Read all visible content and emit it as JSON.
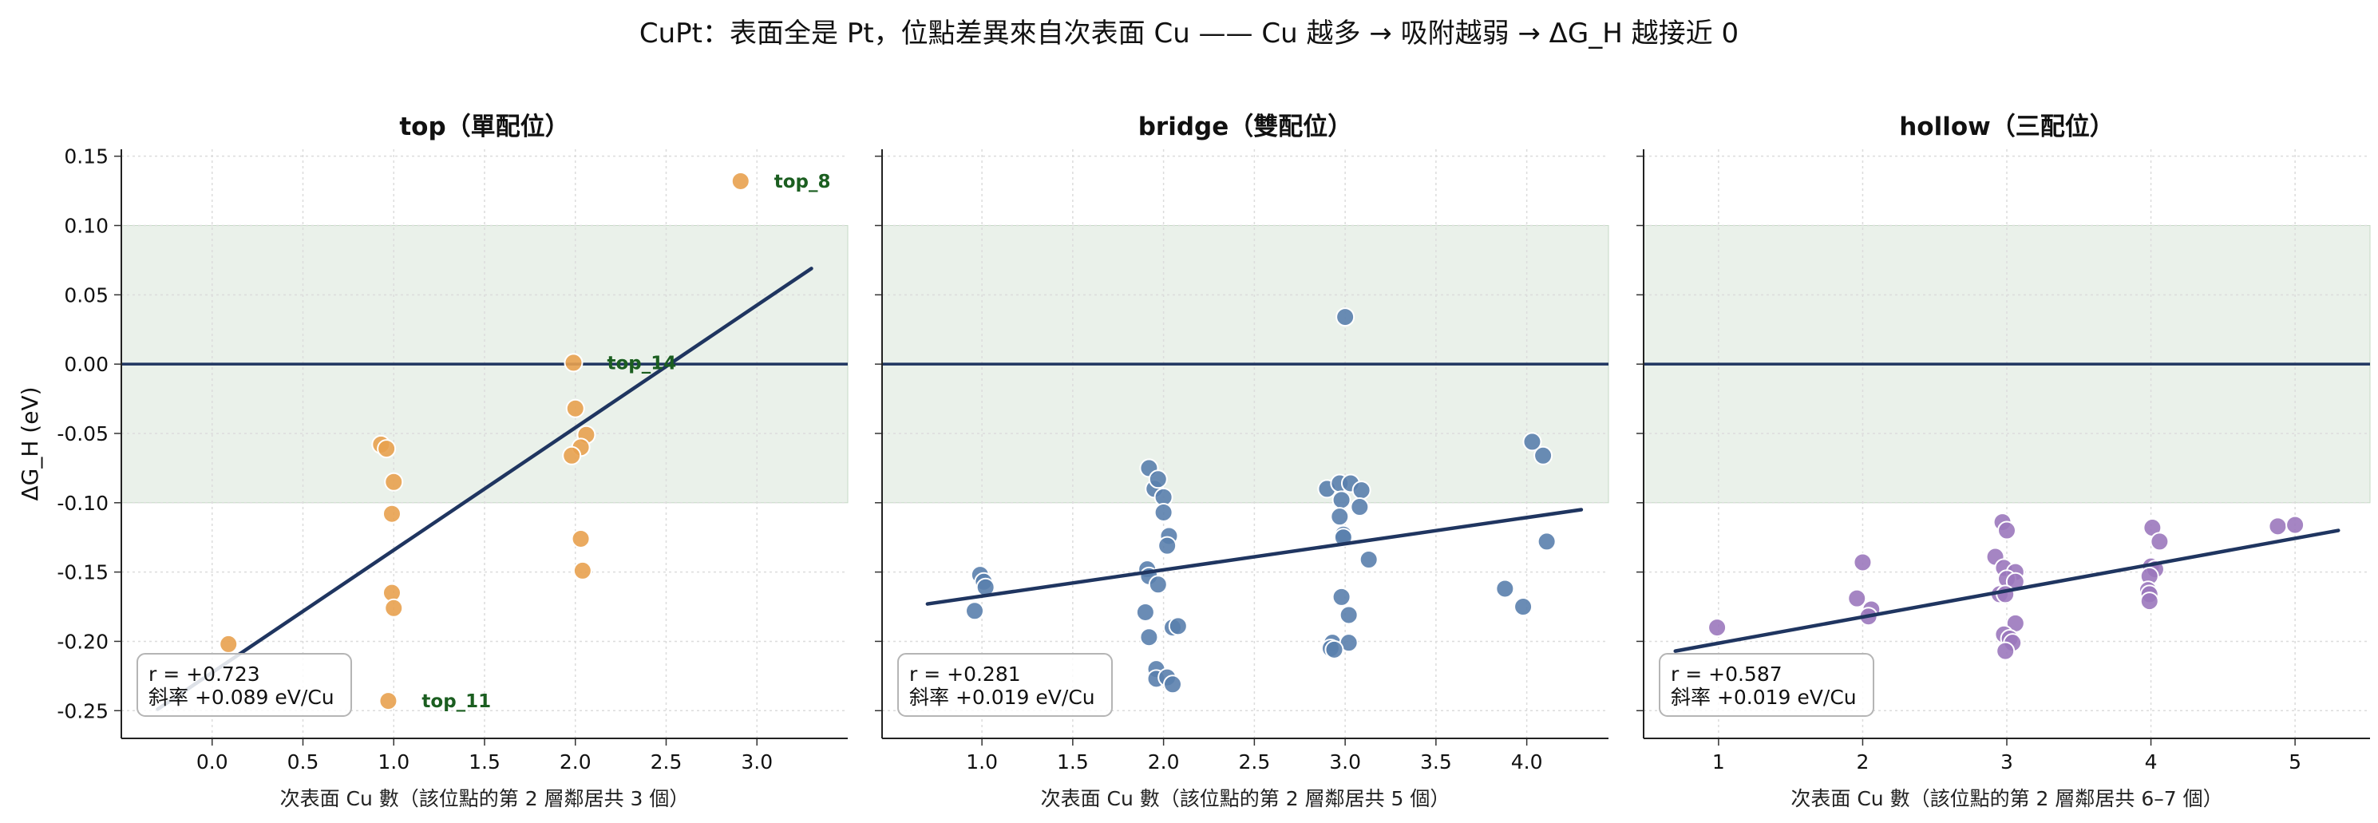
{
  "title": "CuPt：表面全是 Pt，位點差異來自次表面 Cu —— Cu 越多 → 吸附越弱 → ΔG_H 越接近 0",
  "chart_data": [
    {
      "type": "scatter",
      "title": "top（單配位）",
      "xlabel": "次表面 Cu 數（該位點的第 2 層鄰居共 3 個）",
      "ylabel": "ΔG_H (eV)",
      "xlim": [
        -0.5,
        3.5
      ],
      "ylim": [
        -0.27,
        0.155
      ],
      "xticks": [
        "0.0",
        "0.5",
        "1.0",
        "1.5",
        "2.0",
        "2.5",
        "3.0"
      ],
      "yticks": [
        "0.15",
        "0.10",
        "0.05",
        "0.00",
        "-0.05",
        "-0.10",
        "-0.15",
        "-0.20",
        "-0.25"
      ],
      "shaded_band": [
        -0.1,
        0.1
      ],
      "reference_line_y": 0.0,
      "grid": true,
      "color": "#e8a14f",
      "points": [
        {
          "x": 0.09,
          "y": -0.202
        },
        {
          "x": 0.93,
          "y": -0.058
        },
        {
          "x": 0.96,
          "y": -0.061
        },
        {
          "x": 1.0,
          "y": -0.085
        },
        {
          "x": 0.99,
          "y": -0.108
        },
        {
          "x": 0.99,
          "y": -0.165
        },
        {
          "x": 1.0,
          "y": -0.176
        },
        {
          "x": 0.97,
          "y": -0.243
        },
        {
          "x": 1.99,
          "y": 0.001
        },
        {
          "x": 2.0,
          "y": -0.032
        },
        {
          "x": 2.06,
          "y": -0.051
        },
        {
          "x": 2.03,
          "y": -0.06
        },
        {
          "x": 1.98,
          "y": -0.066
        },
        {
          "x": 2.03,
          "y": -0.126
        },
        {
          "x": 2.04,
          "y": -0.149
        },
        {
          "x": 2.91,
          "y": 0.132
        }
      ],
      "labels": [
        {
          "text": "top_8",
          "x": 2.91,
          "y": 0.132
        },
        {
          "text": "top_14",
          "x": 1.99,
          "y": 0.001
        },
        {
          "text": "top_11",
          "x": 0.97,
          "y": -0.243
        }
      ],
      "fit_line": {
        "x0": -0.3,
        "y0": -0.249,
        "x1": 3.3,
        "y1": 0.069
      },
      "stats": {
        "r": "r = +0.723",
        "slope": "斜率 +0.089 eV/Cu"
      }
    },
    {
      "type": "scatter",
      "title": "bridge（雙配位）",
      "xlabel": "次表面 Cu 數（該位點的第 2 層鄰居共 5 個）",
      "xlim": [
        0.45,
        4.45
      ],
      "ylim": [
        -0.27,
        0.155
      ],
      "xticks": [
        "1.0",
        "1.5",
        "2.0",
        "2.5",
        "3.0",
        "3.5",
        "4.0"
      ],
      "shaded_band": [
        -0.1,
        0.1
      ],
      "reference_line_y": 0.0,
      "grid": true,
      "color": "#5a7fad",
      "points": [
        {
          "x": 0.96,
          "y": -0.178
        },
        {
          "x": 0.99,
          "y": -0.152
        },
        {
          "x": 1.01,
          "y": -0.157
        },
        {
          "x": 1.02,
          "y": -0.161
        },
        {
          "x": 1.92,
          "y": -0.075
        },
        {
          "x": 1.95,
          "y": -0.09
        },
        {
          "x": 1.97,
          "y": -0.083
        },
        {
          "x": 2.0,
          "y": -0.096
        },
        {
          "x": 2.0,
          "y": -0.107
        },
        {
          "x": 2.03,
          "y": -0.124
        },
        {
          "x": 2.02,
          "y": -0.131
        },
        {
          "x": 1.91,
          "y": -0.148
        },
        {
          "x": 1.92,
          "y": -0.153
        },
        {
          "x": 1.97,
          "y": -0.159
        },
        {
          "x": 1.9,
          "y": -0.179
        },
        {
          "x": 2.05,
          "y": -0.19
        },
        {
          "x": 2.08,
          "y": -0.189
        },
        {
          "x": 1.92,
          "y": -0.197
        },
        {
          "x": 1.96,
          "y": -0.22
        },
        {
          "x": 1.96,
          "y": -0.227
        },
        {
          "x": 2.02,
          "y": -0.226
        },
        {
          "x": 2.05,
          "y": -0.231
        },
        {
          "x": 3.0,
          "y": 0.034
        },
        {
          "x": 2.9,
          "y": -0.09
        },
        {
          "x": 2.97,
          "y": -0.086
        },
        {
          "x": 3.03,
          "y": -0.086
        },
        {
          "x": 3.09,
          "y": -0.091
        },
        {
          "x": 2.98,
          "y": -0.098
        },
        {
          "x": 3.08,
          "y": -0.103
        },
        {
          "x": 2.97,
          "y": -0.11
        },
        {
          "x": 2.99,
          "y": -0.123
        },
        {
          "x": 2.99,
          "y": -0.125
        },
        {
          "x": 3.13,
          "y": -0.141
        },
        {
          "x": 2.98,
          "y": -0.168
        },
        {
          "x": 3.02,
          "y": -0.181
        },
        {
          "x": 2.93,
          "y": -0.201
        },
        {
          "x": 3.02,
          "y": -0.201
        },
        {
          "x": 2.92,
          "y": -0.205
        },
        {
          "x": 2.94,
          "y": -0.206
        },
        {
          "x": 4.03,
          "y": -0.056
        },
        {
          "x": 4.09,
          "y": -0.066
        },
        {
          "x": 4.11,
          "y": -0.128
        },
        {
          "x": 3.88,
          "y": -0.162
        },
        {
          "x": 3.98,
          "y": -0.175
        }
      ],
      "fit_line": {
        "x0": 0.7,
        "y0": -0.173,
        "x1": 4.3,
        "y1": -0.105
      },
      "stats": {
        "r": "r = +0.281",
        "slope": "斜率 +0.019 eV/Cu"
      }
    },
    {
      "type": "scatter",
      "title": "hollow（三配位）",
      "xlabel": "次表面 Cu 數（該位點的第 2 層鄰居共 6–7 個）",
      "xlim": [
        0.48,
        5.52
      ],
      "ylim": [
        -0.27,
        0.155
      ],
      "xticks": [
        "1",
        "2",
        "3",
        "4",
        "5"
      ],
      "shaded_band": [
        -0.1,
        0.1
      ],
      "reference_line_y": 0.0,
      "grid": true,
      "color": "#9b78bd",
      "points": [
        {
          "x": 0.99,
          "y": -0.19
        },
        {
          "x": 2.0,
          "y": -0.143
        },
        {
          "x": 1.96,
          "y": -0.169
        },
        {
          "x": 2.06,
          "y": -0.177
        },
        {
          "x": 2.04,
          "y": -0.182
        },
        {
          "x": 2.97,
          "y": -0.114
        },
        {
          "x": 3.0,
          "y": -0.12
        },
        {
          "x": 2.92,
          "y": -0.139
        },
        {
          "x": 2.98,
          "y": -0.147
        },
        {
          "x": 3.06,
          "y": -0.15
        },
        {
          "x": 3.0,
          "y": -0.155
        },
        {
          "x": 3.06,
          "y": -0.157
        },
        {
          "x": 2.95,
          "y": -0.166
        },
        {
          "x": 2.99,
          "y": -0.166
        },
        {
          "x": 3.06,
          "y": -0.187
        },
        {
          "x": 2.98,
          "y": -0.195
        },
        {
          "x": 3.02,
          "y": -0.198
        },
        {
          "x": 3.04,
          "y": -0.201
        },
        {
          "x": 2.99,
          "y": -0.207
        },
        {
          "x": 4.01,
          "y": -0.118
        },
        {
          "x": 4.06,
          "y": -0.128
        },
        {
          "x": 4.0,
          "y": -0.146
        },
        {
          "x": 4.03,
          "y": -0.148
        },
        {
          "x": 3.99,
          "y": -0.153
        },
        {
          "x": 3.98,
          "y": -0.163
        },
        {
          "x": 3.99,
          "y": -0.166
        },
        {
          "x": 3.99,
          "y": -0.171
        },
        {
          "x": 4.88,
          "y": -0.117
        },
        {
          "x": 5.0,
          "y": -0.116
        }
      ],
      "fit_line": {
        "x0": 0.7,
        "y0": -0.207,
        "x1": 5.3,
        "y1": -0.12
      },
      "stats": {
        "r": "r = +0.587",
        "slope": "斜率 +0.019 eV/Cu"
      }
    }
  ]
}
